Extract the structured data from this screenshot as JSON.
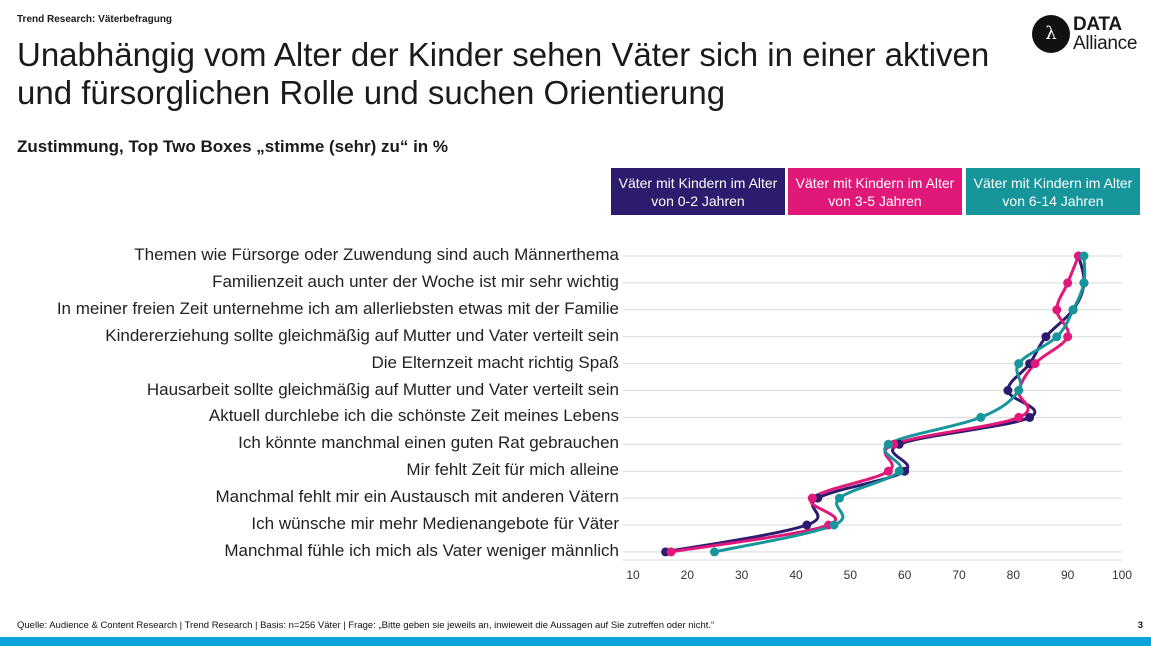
{
  "header": {
    "kicker": "Trend Research: Väterbefragung",
    "title": "Unabhängig vom Alter der Kinder sehen Väter sich in einer aktiven und fürsorglichen Rolle und suchen Orientierung",
    "subtitle": "Zustimmung, Top Two Boxes „stimme (sehr) zu“ in %"
  },
  "logo": {
    "line1": "DATA",
    "line2": "Alliance",
    "icon": "lambda-icon"
  },
  "footer": {
    "source": "Quelle: Audience & Content Research | Trend Research | Basis: n=256 Väter | Frage: „Bitte geben sie jeweils an, inwieweit die Aussagen auf Sie zutreffen oder nicht.“",
    "page": "3"
  },
  "colors": {
    "bar": "#0aa3d9"
  },
  "chart_data": {
    "type": "line",
    "orientation": "horizontal",
    "categories": [
      "Themen wie Fürsorge oder Zuwendung sind auch Männerthema",
      "Familienzeit auch unter der Woche ist mir sehr wichtig",
      "In meiner freien Zeit unternehme ich am allerliebsten etwas mit der Familie",
      "Kindererziehung sollte gleichmäßig auf Mutter und Vater verteilt sein",
      "Die Elternzeit macht richtig Spaß",
      "Hausarbeit sollte gleichmäßig auf Mutter und Vater verteilt sein",
      "Aktuell durchlebe ich die schönste Zeit meines Lebens",
      "Ich könnte manchmal einen guten Rat gebrauchen",
      "Mir fehlt Zeit für mich alleine",
      "Manchmal fehlt mir ein Austausch mit anderen Vätern",
      "Ich wünsche mir mehr Medienangebote für Väter",
      "Manchmal fühle ich mich als Vater weniger männlich"
    ],
    "series": [
      {
        "name": "Väter mit Kindern im Alter von 0-2 Jahren",
        "color": "#2d1b6e",
        "values": [
          92,
          93,
          91,
          86,
          83,
          79,
          83,
          59,
          60,
          44,
          42,
          16
        ]
      },
      {
        "name": "Väter mit Kindern im Alter von 3-5 Jahren",
        "color": "#e0187a",
        "values": [
          92,
          90,
          88,
          90,
          84,
          81,
          81,
          58,
          57,
          43,
          46,
          17
        ]
      },
      {
        "name": "Väter mit Kindern im Alter von 6-14 Jahren",
        "color": "#16959b",
        "values": [
          93,
          93,
          91,
          88,
          81,
          81,
          74,
          57,
          59,
          48,
          47,
          25
        ]
      }
    ],
    "xticks": [
      "10",
      "20",
      "30",
      "40",
      "50",
      "60",
      "70",
      "80",
      "90",
      "100"
    ],
    "xlim": [
      10,
      100
    ],
    "grid": true
  }
}
